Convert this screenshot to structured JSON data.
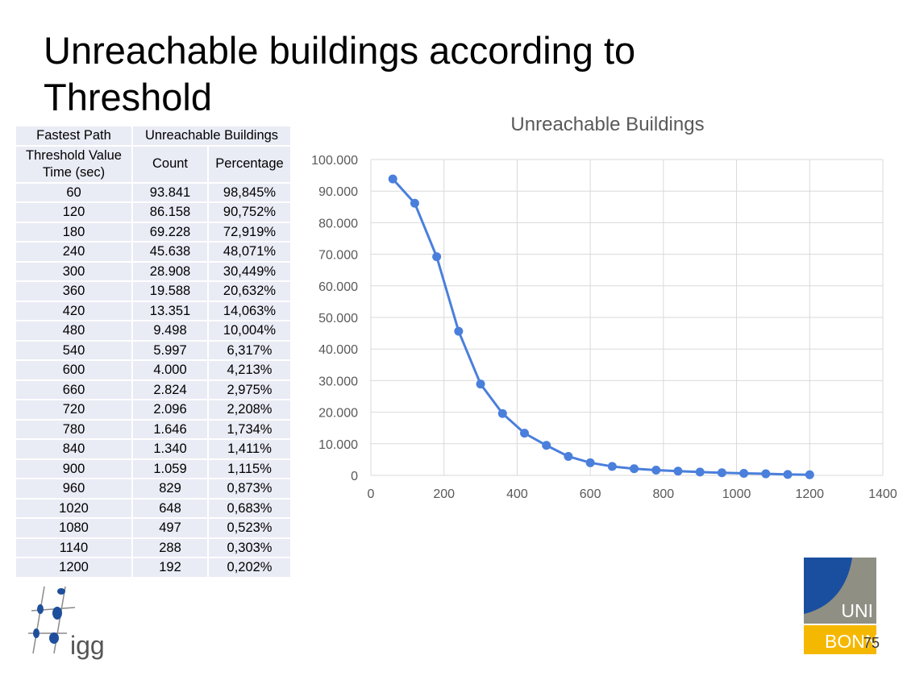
{
  "slide": {
    "title": "Unreachable buildings according to Threshold",
    "page_number": "75"
  },
  "table": {
    "header_row1": [
      "Fastest Path",
      "Unreachable Buildings"
    ],
    "header_row2": [
      "Threshold Value Time (sec)",
      "Count",
      "Percentage"
    ],
    "rows": [
      [
        "60",
        "93.841",
        "98,845%"
      ],
      [
        "120",
        "86.158",
        "90,752%"
      ],
      [
        "180",
        "69.228",
        "72,919%"
      ],
      [
        "240",
        "45.638",
        "48,071%"
      ],
      [
        "300",
        "28.908",
        "30,449%"
      ],
      [
        "360",
        "19.588",
        "20,632%"
      ],
      [
        "420",
        "13.351",
        "14,063%"
      ],
      [
        "480",
        "9.498",
        "10,004%"
      ],
      [
        "540",
        "5.997",
        "6,317%"
      ],
      [
        "600",
        "4.000",
        "4,213%"
      ],
      [
        "660",
        "2.824",
        "2,975%"
      ],
      [
        "720",
        "2.096",
        "2,208%"
      ],
      [
        "780",
        "1.646",
        "1,734%"
      ],
      [
        "840",
        "1.340",
        "1,411%"
      ],
      [
        "900",
        "1.059",
        "1,115%"
      ],
      [
        "960",
        "829",
        "0,873%"
      ],
      [
        "1020",
        "648",
        "0,683%"
      ],
      [
        "1080",
        "497",
        "0,523%"
      ],
      [
        "1140",
        "288",
        "0,303%"
      ],
      [
        "1200",
        "192",
        "0,202%"
      ]
    ]
  },
  "chart_data": {
    "type": "line",
    "title": "Unreachable Buildings",
    "xlabel": "",
    "ylabel": "",
    "xlim": [
      0,
      1400
    ],
    "ylim": [
      0,
      100000
    ],
    "x_ticks": [
      "0",
      "200",
      "400",
      "600",
      "800",
      "1000",
      "1200",
      "1400"
    ],
    "y_ticks": [
      "0",
      "10.000",
      "20.000",
      "30.000",
      "40.000",
      "50.000",
      "60.000",
      "70.000",
      "80.000",
      "90.000",
      "100.000"
    ],
    "grid": true,
    "series": [
      {
        "color": "#4a7fdc",
        "x": [
          60,
          120,
          180,
          240,
          300,
          360,
          420,
          480,
          540,
          600,
          660,
          720,
          780,
          840,
          900,
          960,
          1020,
          1080,
          1140,
          1200
        ],
        "y": [
          93841,
          86158,
          69228,
          45638,
          28908,
          19588,
          13351,
          9498,
          5997,
          4000,
          2824,
          2096,
          1646,
          1340,
          1059,
          829,
          648,
          497,
          288,
          192
        ]
      }
    ]
  },
  "logos": {
    "uni_bonn": [
      "UNI",
      "BONN"
    ],
    "igg": "igg",
    "uni_bonn_colors": {
      "blue": "#1a4fa0",
      "gray": "#8f8f84",
      "yellow": "#f5b800"
    },
    "igg_color": "#1f4f9c"
  }
}
